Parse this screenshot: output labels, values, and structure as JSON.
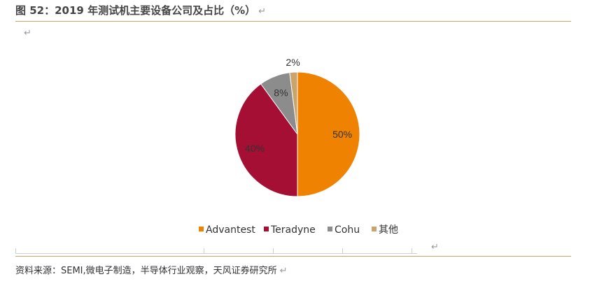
{
  "header": {
    "title": "图 52：2019 年测试机主要设备公司及占比（%）",
    "return_mark": "↵"
  },
  "source": "资料来源：SEMI,微电子制造，半导体行业观察，天风证券研究所",
  "chart_data": {
    "type": "pie",
    "title": "",
    "categories": [
      "Advantest",
      "Teradyne",
      "Cohu",
      "其他"
    ],
    "values": [
      50,
      40,
      8,
      2
    ],
    "data_labels": [
      "50%",
      "40%",
      "8%",
      "2%"
    ],
    "colors": [
      "#ef8200",
      "#a50f34",
      "#8c8c8c",
      "#c9a46d"
    ],
    "legend": "bottom",
    "start_angle_deg": 0,
    "direction": "clockwise"
  }
}
